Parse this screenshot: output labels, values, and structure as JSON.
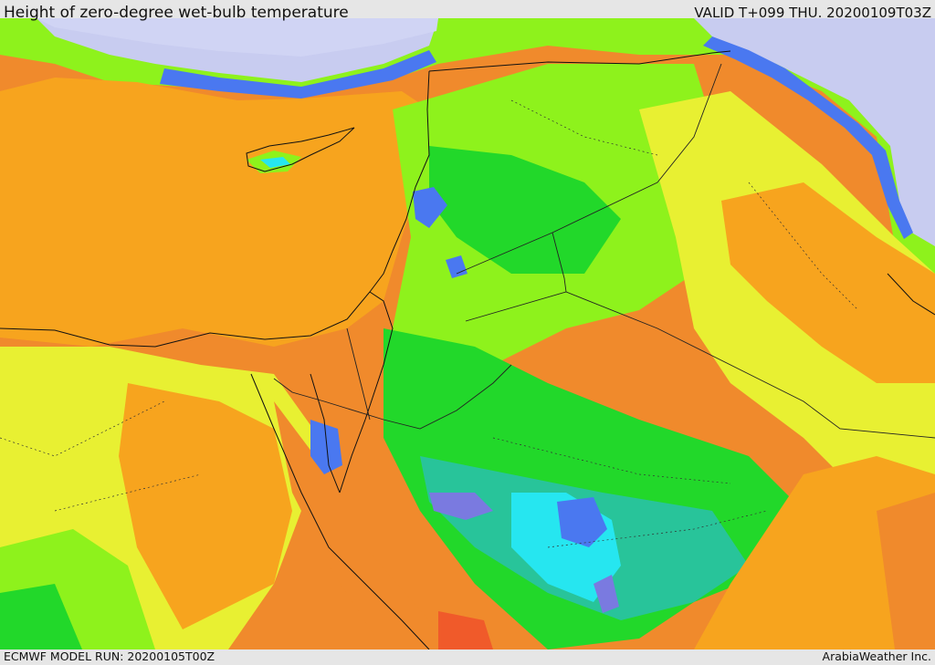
{
  "header": {
    "title": "Height of zero-degree wet-bulb temperature",
    "valid": "VALID T+099 THU. 20200109T03Z"
  },
  "footer": {
    "model_run": "ECMWF MODEL RUN: 20200105T00Z",
    "credit": "ArabiaWeather Inc."
  },
  "palette": {
    "sea_background": "#f08a2c",
    "deep_orange": "#f08a2c",
    "orange": "#f7a41e",
    "yellow": "#e8f032",
    "light_green": "#8ef21c",
    "green": "#22d82a",
    "teal": "#28c49a",
    "cyan": "#26e6f0",
    "blue": "#4a78f0",
    "violet": "#7a7ae0",
    "lavender": "#c8ccf0",
    "red": "#f05a2a",
    "coast_line": "#111111",
    "border_line": "#222222"
  },
  "map": {
    "region": "Eastern Mediterranean and Middle East",
    "layers": [
      "wet-bulb zero height field",
      "coastlines",
      "country borders",
      "province borders"
    ]
  }
}
